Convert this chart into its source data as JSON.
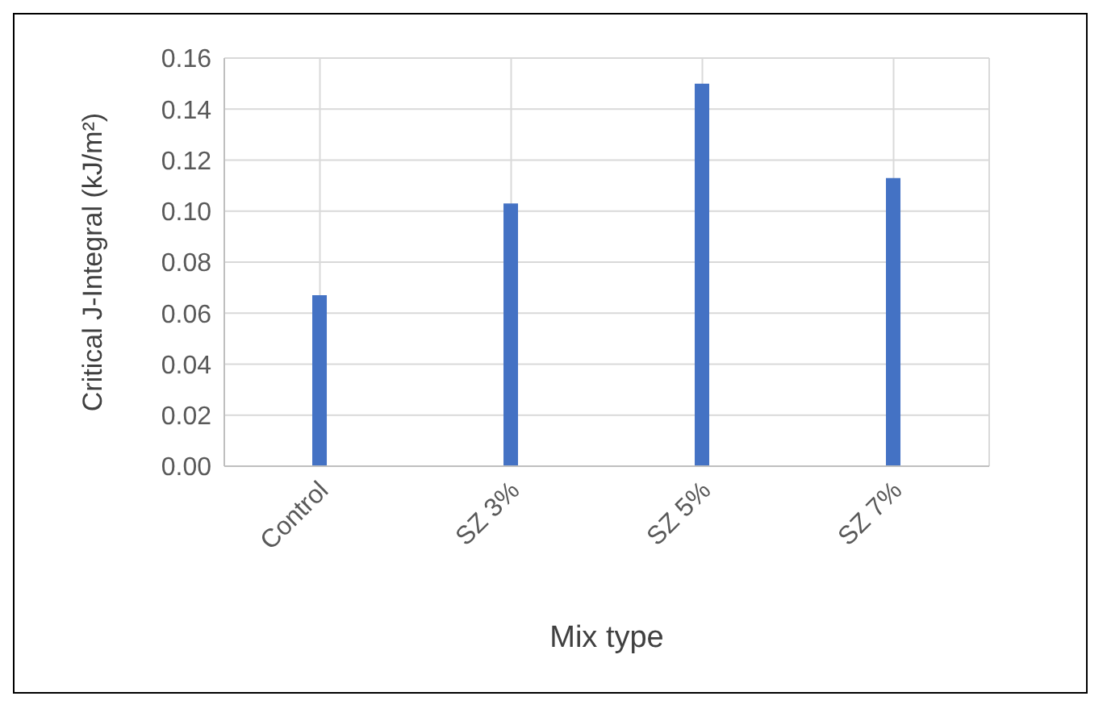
{
  "chart_data": {
    "type": "bar",
    "xlabel": "Mix type",
    "ylabel": "Critical J-Integral (kJ/m²)",
    "categories": [
      "Control",
      "SZ 3%",
      "SZ 5%",
      "SZ 7%"
    ],
    "values": [
      0.067,
      0.103,
      0.15,
      0.113
    ],
    "color": "#4472c4",
    "ylim": [
      0,
      0.16
    ],
    "yticks": [
      {
        "value": 0,
        "label": "0.00"
      },
      {
        "value": 0.02,
        "label": "0.02"
      },
      {
        "value": 0.04,
        "label": "0.04"
      },
      {
        "value": 0.06,
        "label": "0.06"
      },
      {
        "value": 0.08,
        "label": "0.08"
      },
      {
        "value": 0.1,
        "label": "0.10"
      },
      {
        "value": 0.12,
        "label": "0.12"
      },
      {
        "value": 0.14,
        "label": "0.14"
      },
      {
        "value": 0.16,
        "label": "0.16"
      }
    ],
    "grid": true
  }
}
